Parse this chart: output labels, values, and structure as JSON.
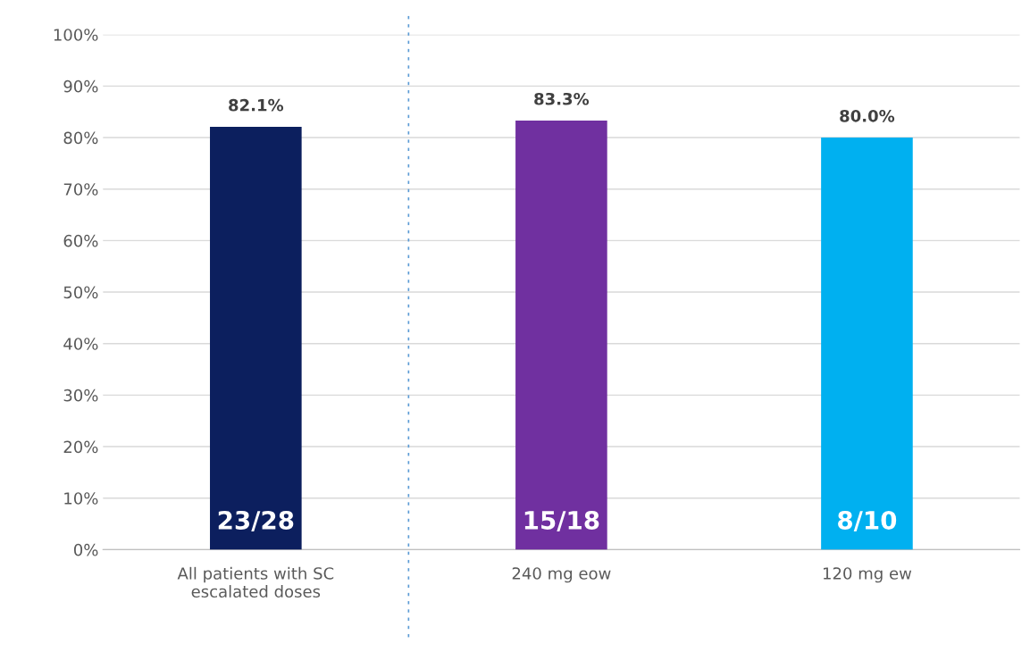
{
  "chart_data": {
    "type": "bar",
    "categories": [
      "All patients with SC\nescalated doses",
      "240 mg eow",
      "120 mg ew"
    ],
    "values": [
      82.1,
      83.3,
      80.0
    ],
    "colors": [
      "#0c1f5e",
      "#7030a0",
      "#00b0f0"
    ],
    "value_labels": [
      "82.1%",
      "83.3%",
      "80.0%"
    ],
    "annotations": [
      "23/28",
      "15/18",
      "8/10"
    ],
    "ylim": [
      0,
      100
    ],
    "yticks": [
      {
        "value": 0,
        "label": "0%"
      },
      {
        "value": 10,
        "label": "10%"
      },
      {
        "value": 20,
        "label": "20%"
      },
      {
        "value": 30,
        "label": "30%"
      },
      {
        "value": 40,
        "label": "40%"
      },
      {
        "value": 50,
        "label": "50%"
      },
      {
        "value": 60,
        "label": "60%"
      },
      {
        "value": 70,
        "label": "70%"
      },
      {
        "value": 80,
        "label": "80%"
      },
      {
        "value": 90,
        "label": "90%"
      },
      {
        "value": 100,
        "label": "100%"
      }
    ],
    "grid": "y",
    "legend": false
  }
}
